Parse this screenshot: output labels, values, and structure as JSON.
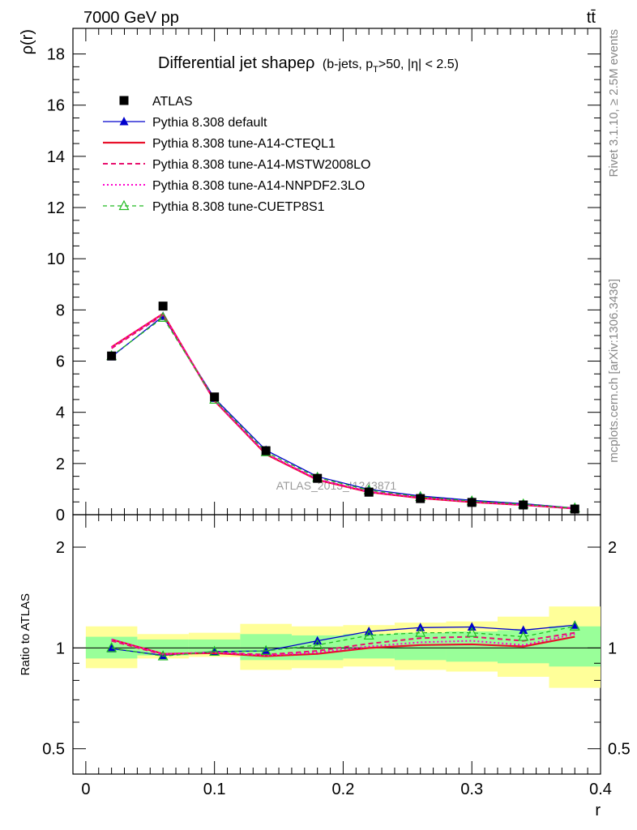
{
  "header": {
    "energy_label": "7000 GeV pp",
    "process_label": "tt̄",
    "plot_title": "Differential jet shapeρ",
    "plot_subtitle": "(b-jets, p",
    "subtitle_sub": "T",
    "subtitle_rest": ">50, |η| < 2.5)",
    "watermark": "ATLAS_2013_I1243871",
    "side_rivet": "Rivet 3.1.10, ≥ 2.5M events",
    "side_mcplots": "mcplots.cern.ch [arXiv:1306.3436]"
  },
  "chart_data": [
    {
      "type": "line",
      "panel": "main",
      "ylabel": "ρ(r)",
      "xlabel": "",
      "xlim": [
        -0.01,
        0.4
      ],
      "ylim": [
        0,
        19
      ],
      "yticks": [
        0,
        2,
        4,
        6,
        8,
        10,
        12,
        14,
        16,
        18
      ],
      "x": [
        0.02,
        0.06,
        0.1,
        0.14,
        0.18,
        0.22,
        0.26,
        0.3,
        0.34,
        0.38
      ],
      "legend_position": "top-left",
      "series": [
        {
          "name": "ATLAS",
          "style": "data",
          "color": "#000000",
          "values": [
            6.2,
            8.15,
            4.6,
            2.5,
            1.42,
            0.88,
            0.63,
            0.48,
            0.38,
            0.22
          ]
        },
        {
          "name": "Pythia 8.308 default",
          "style": "solid-triangle",
          "color": "#0000cc",
          "values": [
            6.17,
            7.75,
            4.55,
            2.52,
            1.49,
            0.99,
            0.73,
            0.56,
            0.43,
            0.26
          ]
        },
        {
          "name": "Pythia 8.308 tune-A14-CTEQL1",
          "style": "solid",
          "color": "#e8102a",
          "values": [
            6.55,
            7.85,
            4.45,
            2.36,
            1.36,
            0.88,
            0.65,
            0.49,
            0.38,
            0.24
          ]
        },
        {
          "name": "Pythia 8.308 tune-A14-MSTW2008LO",
          "style": "dashed",
          "color": "#e8106e",
          "values": [
            6.5,
            7.8,
            4.45,
            2.38,
            1.38,
            0.9,
            0.68,
            0.51,
            0.39,
            0.245
          ]
        },
        {
          "name": "Pythia 8.308 tune-A14-NNPDF2.3LO",
          "style": "dotted",
          "color": "#ff00cc",
          "values": [
            6.55,
            7.85,
            4.47,
            2.38,
            1.38,
            0.89,
            0.66,
            0.5,
            0.385,
            0.242
          ]
        },
        {
          "name": "Pythia 8.308 tune-CUETP8S1",
          "style": "dashed-open-triangle",
          "color": "#22bb22",
          "values": [
            6.2,
            7.7,
            4.5,
            2.45,
            1.45,
            0.96,
            0.7,
            0.53,
            0.41,
            0.255
          ]
        }
      ]
    },
    {
      "type": "line",
      "panel": "ratio",
      "ylabel": "Ratio to ATLAS",
      "xlabel": "r",
      "xlim": [
        -0.01,
        0.4
      ],
      "ylim": [
        0.42,
        2.5
      ],
      "yscale": "log",
      "yticks": [
        0.5,
        1,
        2
      ],
      "xticks": [
        0,
        0.1,
        0.2,
        0.3,
        0.4
      ],
      "x": [
        0.02,
        0.06,
        0.1,
        0.14,
        0.18,
        0.22,
        0.26,
        0.3,
        0.34,
        0.38
      ],
      "bands": {
        "x_edges": [
          [
            0.0,
            0.04
          ],
          [
            0.04,
            0.08
          ],
          [
            0.08,
            0.12
          ],
          [
            0.12,
            0.16
          ],
          [
            0.16,
            0.2
          ],
          [
            0.2,
            0.24
          ],
          [
            0.24,
            0.28
          ],
          [
            0.28,
            0.32
          ],
          [
            0.32,
            0.36
          ],
          [
            0.36,
            0.4
          ]
        ],
        "yellow": [
          [
            0.87,
            1.16
          ],
          [
            0.93,
            1.1
          ],
          [
            0.94,
            1.11
          ],
          [
            0.86,
            1.18
          ],
          [
            0.87,
            1.16
          ],
          [
            0.88,
            1.17
          ],
          [
            0.86,
            1.19
          ],
          [
            0.85,
            1.2
          ],
          [
            0.82,
            1.24
          ],
          [
            0.76,
            1.33
          ]
        ],
        "green": [
          [
            0.93,
            1.08
          ],
          [
            0.95,
            1.06
          ],
          [
            0.96,
            1.06
          ],
          [
            0.92,
            1.1
          ],
          [
            0.92,
            1.09
          ],
          [
            0.93,
            1.1
          ],
          [
            0.92,
            1.11
          ],
          [
            0.91,
            1.12
          ],
          [
            0.9,
            1.13
          ],
          [
            0.88,
            1.16
          ]
        ]
      },
      "series": [
        {
          "name": "Pythia 8.308 default",
          "style": "solid-triangle",
          "color": "#0000cc",
          "values": [
            0.995,
            0.95,
            0.975,
            0.98,
            1.05,
            1.12,
            1.15,
            1.155,
            1.13,
            1.17
          ]
        },
        {
          "name": "Pythia 8.308 tune-A14-CTEQL1",
          "style": "solid",
          "color": "#e8102a",
          "values": [
            1.06,
            0.96,
            0.965,
            0.945,
            0.96,
            1.0,
            1.02,
            1.025,
            1.01,
            1.08
          ]
        },
        {
          "name": "Pythia 8.308 tune-A14-MSTW2008LO",
          "style": "dashed",
          "color": "#e8106e",
          "values": [
            1.05,
            0.955,
            0.97,
            0.955,
            0.98,
            1.03,
            1.07,
            1.08,
            1.05,
            1.11
          ]
        },
        {
          "name": "Pythia 8.308 tune-A14-NNPDF2.3LO",
          "style": "dotted",
          "color": "#ff00cc",
          "values": [
            1.06,
            0.96,
            0.97,
            0.95,
            0.97,
            1.01,
            1.04,
            1.05,
            1.02,
            1.1
          ]
        },
        {
          "name": "Pythia 8.308 tune-CUETP8S1",
          "style": "dashed-open-triangle",
          "color": "#22bb22",
          "values": [
            1.0,
            0.945,
            0.975,
            0.98,
            1.02,
            1.09,
            1.11,
            1.11,
            1.08,
            1.16
          ]
        }
      ]
    }
  ]
}
